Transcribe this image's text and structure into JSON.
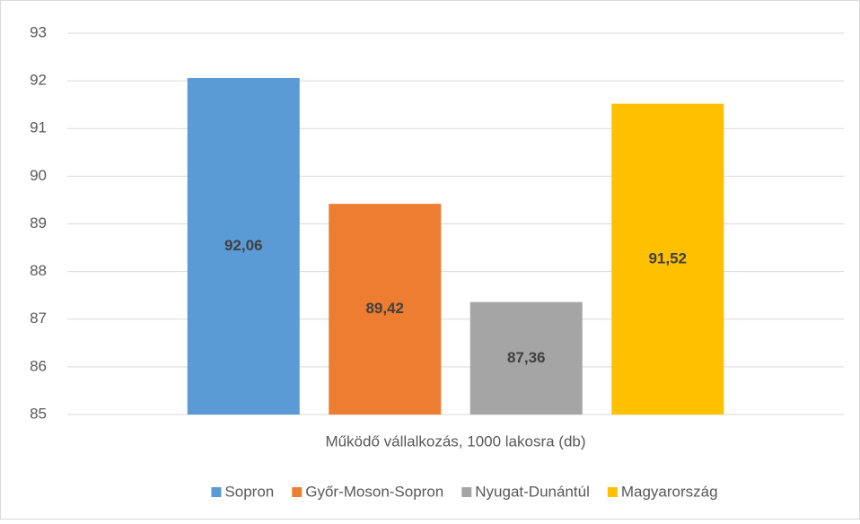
{
  "chart_data": {
    "type": "bar",
    "categories": [
      "Működő vállalkozás, 1000 lakosra (db)"
    ],
    "series": [
      {
        "name": "Sopron",
        "color": "#5b9bd5",
        "values": [
          92.06
        ],
        "value_labels": [
          "92,06"
        ]
      },
      {
        "name": "Győr-Moson-Sopron",
        "color": "#ed7d31",
        "values": [
          89.42
        ],
        "value_labels": [
          "89,42"
        ]
      },
      {
        "name": "Nyugat-Dunántúl",
        "color": "#a5a5a5",
        "values": [
          87.36
        ],
        "value_labels": [
          "87,36"
        ]
      },
      {
        "name": "Magyarország",
        "color": "#ffc000",
        "values": [
          91.52
        ],
        "value_labels": [
          "91,52"
        ]
      }
    ],
    "ylim": [
      85,
      93
    ],
    "yticks": [
      85,
      86,
      87,
      88,
      89,
      90,
      91,
      92,
      93
    ],
    "grid": true,
    "legend": "bottom"
  }
}
